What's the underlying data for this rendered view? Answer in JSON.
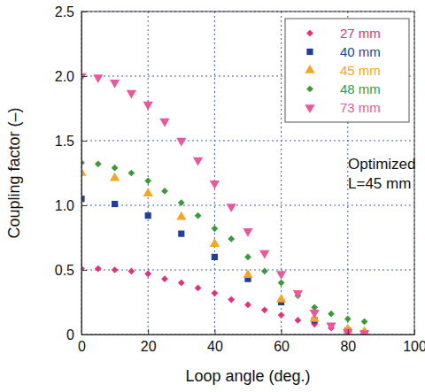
{
  "chart_data": {
    "type": "scatter",
    "x_label": "Loop angle (deg.)",
    "y_label": "Coupling factor (–)",
    "annotations": [
      "Optimized",
      "L=45 mm"
    ],
    "xlim": [
      0,
      100
    ],
    "xticks": [
      0,
      20,
      40,
      60,
      80,
      100
    ],
    "ylim": [
      0,
      2.5
    ],
    "yticks": [
      0,
      0.5,
      {
        "value": 1,
        "label": "1.0"
      },
      1.5,
      {
        "value": 2,
        "label": "2.0"
      },
      2.5
    ],
    "grid": true,
    "legend": "top-right",
    "series": [
      {
        "name": "27 mm",
        "color": "#e0317d",
        "marker": "diamond",
        "x": [
          0,
          5,
          10,
          15,
          20,
          25,
          30,
          35,
          40,
          45,
          50,
          55,
          60,
          65,
          70,
          75,
          80,
          85
        ],
        "values": [
          0.51,
          0.51,
          0.5,
          0.49,
          0.47,
          0.43,
          0.4,
          0.36,
          0.32,
          0.27,
          0.23,
          0.19,
          0.15,
          0.11,
          0.08,
          0.05,
          0.03,
          0.02
        ]
      },
      {
        "name": "40 mm",
        "color": "#1f3f99",
        "marker": "square",
        "x": [
          0,
          10,
          20,
          30,
          40,
          50,
          60,
          70,
          80,
          85
        ],
        "values": [
          1.05,
          1.01,
          0.92,
          0.78,
          0.6,
          0.43,
          0.25,
          0.11,
          0.03,
          0.01
        ]
      },
      {
        "name": "45 mm",
        "color": "#f5a623",
        "marker": "triangle",
        "x": [
          0,
          10,
          20,
          30,
          40,
          50,
          60,
          70,
          80,
          85
        ],
        "values": [
          1.25,
          1.21,
          1.09,
          0.91,
          0.7,
          0.46,
          0.27,
          0.12,
          0.04,
          0.02
        ]
      },
      {
        "name": "48 mm",
        "color": "#3a9a3a",
        "marker": "diamond",
        "x": [
          0,
          5,
          10,
          15,
          20,
          25,
          30,
          35,
          40,
          45,
          50,
          55,
          60,
          65,
          70,
          75,
          80,
          85
        ],
        "values": [
          1.33,
          1.32,
          1.29,
          1.25,
          1.19,
          1.11,
          1.02,
          0.92,
          0.82,
          0.74,
          0.6,
          0.49,
          0.4,
          0.3,
          0.21,
          0.16,
          0.12,
          0.1
        ]
      },
      {
        "name": "73 mm",
        "color": "#e8589c",
        "marker": "triangle-down",
        "x": [
          0,
          5,
          10,
          15,
          20,
          25,
          30,
          35,
          40,
          45,
          50,
          55,
          60,
          65,
          70,
          75,
          80,
          85
        ],
        "values": [
          2.0,
          1.99,
          1.95,
          1.87,
          1.78,
          1.65,
          1.5,
          1.35,
          1.17,
          0.99,
          0.8,
          0.63,
          0.47,
          0.32,
          0.17,
          0.07,
          0.02,
          0.01
        ]
      }
    ]
  }
}
